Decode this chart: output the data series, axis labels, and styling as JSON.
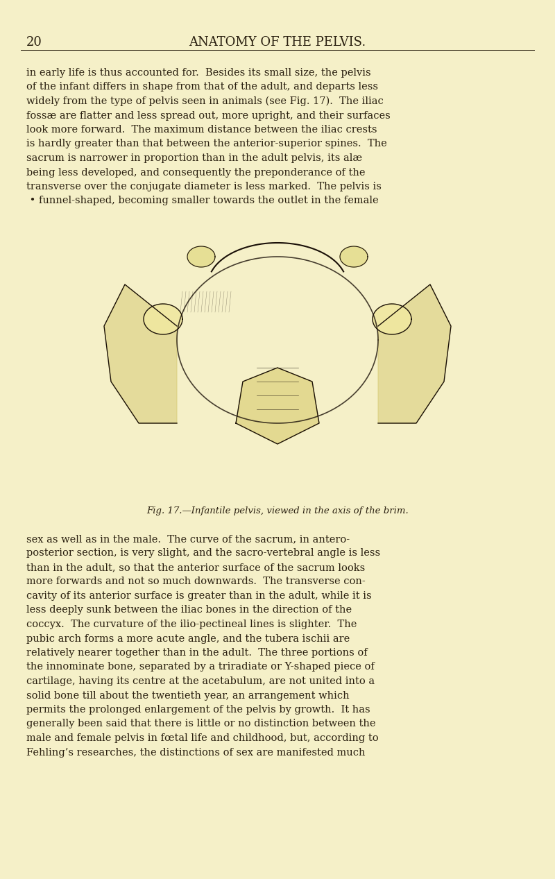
{
  "background_color": "#f5f0c8",
  "page_number": "20",
  "header": "ANATOMY OF THE PELVIS.",
  "header_fontsize": 13,
  "page_num_fontsize": 13,
  "body_fontsize": 10.5,
  "caption_fontsize": 9.5,
  "text_color": "#2a2010",
  "font_family": "serif",
  "para1": "in early life is thus accounted for.  Besides its small size, the pelvis\nof the infant differs in shape from that of the adult, and departs less\nwidely from the type of pelvis seen in animals (see Fig. 17).  The iliac\nfossæ are flatter and less spread out, more upright, and their surfaces\nlook more forward.  The maximum distance between the iliac crests\nis hardly greater than that between the anterior-superior spines.  The\nsacrum is narrower in proportion than in the adult pelvis, its alæ\nbeing less developed, and consequently the preponderance of the\ntransverse over the conjugate diameter is less marked.  The pelvis is\n • funnel-shaped, becoming smaller towards the outlet in the female",
  "caption": "Fig. 17.—Infantile pelvis, viewed in the axis of the brim.",
  "para2": "sex as well as in the male.  The curve of the sacrum, in antero-\nposterior section, is very slight, and the sacro-vertebral angle is less\nthan in the adult, so that the anterior surface of the sacrum looks\nmore forwards and not so much downwards.  The transverse con-\ncavity of its anterior surface is greater than in the adult, while it is\nless deeply sunk between the iliac bones in the direction of the\ncoccyx.  The curvature of the ilio-pectineal lines is slighter.  The\npubic arch forms a more acute angle, and the tubera ischii are\nrelatively nearer together than in the adult.  The three portions of\nthe innominate bone, separated by a triradiate or Y-shaped piece of\ncartilage, having its centre at the acetabulum, are not united into a\nsolid bone till about the twentieth year, an arrangement which\npermits the prolonged enlargement of the pelvis by growth.  It has\ngenerally been said that there is little or no distinction between the\nmale and female pelvis in fœtal life and childhood, but, according to\nFehling’s researches, the distinctions of sex are manifested much"
}
